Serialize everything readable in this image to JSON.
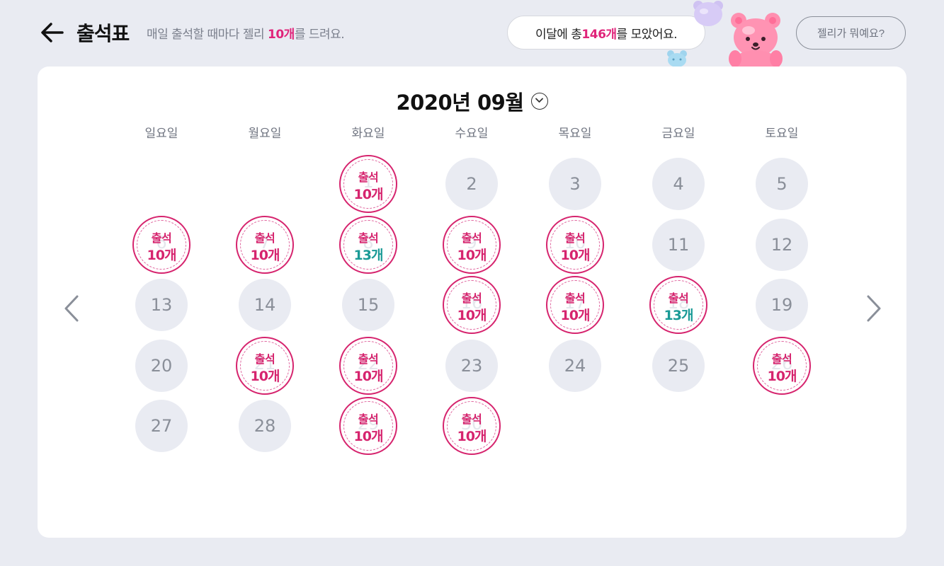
{
  "header": {
    "title": "출석표",
    "subtitle_prefix": "매일 출석할 때마다 젤리 ",
    "subtitle_highlight": "10개",
    "subtitle_suffix": "를 드려요.",
    "back_icon": "arrow-left-icon"
  },
  "summary": {
    "prefix": "이달에 총 ",
    "highlight": "146개",
    "suffix": "를 모았어요."
  },
  "help_button": "젤리가 뭐예요?",
  "colors": {
    "accent": "#d6246e",
    "bonus": "#1a9a96",
    "background": "#e9ebf2",
    "day_bg": "#e9ebf2"
  },
  "calendar": {
    "month_label": "2020년 09월",
    "dropdown_icon": "chevron-down-icon",
    "prev_icon": "chevron-left-icon",
    "next_icon": "chevron-right-icon",
    "weekdays": [
      "일요일",
      "월요일",
      "화요일",
      "수요일",
      "목요일",
      "금요일",
      "토요일"
    ],
    "stamp_label": "출석",
    "days": [
      {
        "day": "1",
        "col": 2,
        "row": 0,
        "attended": true,
        "reward": "10개"
      },
      {
        "day": "2",
        "col": 3,
        "row": 0,
        "attended": false
      },
      {
        "day": "3",
        "col": 4,
        "row": 0,
        "attended": false
      },
      {
        "day": "4",
        "col": 5,
        "row": 0,
        "attended": false
      },
      {
        "day": "5",
        "col": 6,
        "row": 0,
        "attended": false
      },
      {
        "day": "6",
        "col": 0,
        "row": 1,
        "attended": true,
        "reward": "10개"
      },
      {
        "day": "7",
        "col": 1,
        "row": 1,
        "attended": true,
        "reward": "10개"
      },
      {
        "day": "8",
        "col": 2,
        "row": 1,
        "attended": true,
        "reward": "13개",
        "bonus": true
      },
      {
        "day": "9",
        "col": 3,
        "row": 1,
        "attended": true,
        "reward": "10개"
      },
      {
        "day": "10",
        "col": 4,
        "row": 1,
        "attended": true,
        "reward": "10개"
      },
      {
        "day": "11",
        "col": 5,
        "row": 1,
        "attended": false
      },
      {
        "day": "12",
        "col": 6,
        "row": 1,
        "attended": false
      },
      {
        "day": "13",
        "col": 0,
        "row": 2,
        "attended": false
      },
      {
        "day": "14",
        "col": 1,
        "row": 2,
        "attended": false
      },
      {
        "day": "15",
        "col": 2,
        "row": 2,
        "attended": false
      },
      {
        "day": "16",
        "col": 3,
        "row": 2,
        "attended": true,
        "reward": "10개"
      },
      {
        "day": "17",
        "col": 4,
        "row": 2,
        "attended": true,
        "reward": "10개"
      },
      {
        "day": "18",
        "col": 5,
        "row": 2,
        "attended": true,
        "reward": "13개",
        "bonus": true
      },
      {
        "day": "19",
        "col": 6,
        "row": 2,
        "attended": false
      },
      {
        "day": "20",
        "col": 0,
        "row": 3,
        "attended": false
      },
      {
        "day": "21",
        "col": 1,
        "row": 3,
        "attended": true,
        "reward": "10개"
      },
      {
        "day": "22",
        "col": 2,
        "row": 3,
        "attended": true,
        "reward": "10개"
      },
      {
        "day": "23",
        "col": 3,
        "row": 3,
        "attended": false
      },
      {
        "day": "24",
        "col": 4,
        "row": 3,
        "attended": false
      },
      {
        "day": "25",
        "col": 5,
        "row": 3,
        "attended": false
      },
      {
        "day": "26",
        "col": 6,
        "row": 3,
        "attended": true,
        "reward": "10개"
      },
      {
        "day": "27",
        "col": 0,
        "row": 4,
        "attended": false
      },
      {
        "day": "28",
        "col": 1,
        "row": 4,
        "attended": false
      },
      {
        "day": "29",
        "col": 2,
        "row": 4,
        "attended": true,
        "reward": "10개"
      },
      {
        "day": "30",
        "col": 3,
        "row": 4,
        "attended": true,
        "reward": "10개"
      }
    ]
  }
}
